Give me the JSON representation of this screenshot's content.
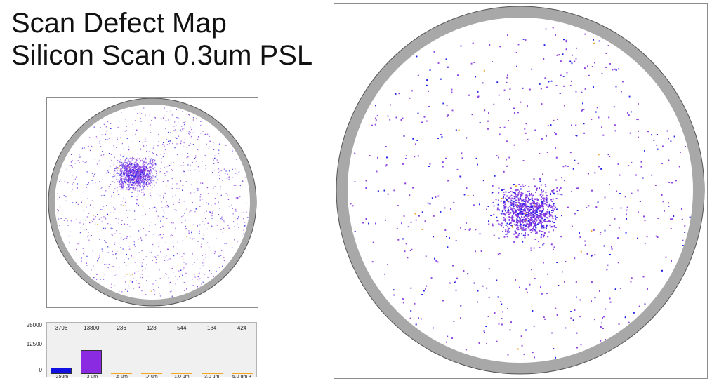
{
  "title": {
    "line1": "Scan Defect Map",
    "line2": "Silicon Scan 0.3um PSL"
  },
  "colors": {
    "ring": "#a8a8a8",
    "ring_outline": "#555555",
    "defect_small_bin": "#1a1ae6",
    "defect_main_bin": "#8a3ee0",
    "defect_large_bin": "#f0a020",
    "bar_025": "#1010e0",
    "bar_03": "#8a2be2",
    "bar_10": "#f5a623"
  },
  "chart_data": [
    {
      "type": "bar",
      "title": "",
      "xlabel": "",
      "ylabel": "",
      "categories": [
        ".25um",
        ".3 um",
        ".5 um",
        ".7 um",
        "1.0 um",
        "3.0 um",
        "5.0 um +"
      ],
      "values": [
        3796,
        13800,
        236,
        128,
        544,
        184,
        424
      ],
      "count_labels": [
        "3796",
        "13800",
        "236",
        "128",
        "544",
        "184",
        "424"
      ],
      "yticks": [
        "25000",
        "12500",
        "0"
      ],
      "ylim": [
        0,
        25000
      ],
      "grid": false
    }
  ],
  "wafer_maps": [
    {
      "name": "wafer-map-overview",
      "concentration": "upper-left center"
    },
    {
      "name": "wafer-map-detail",
      "concentration": "center"
    }
  ]
}
